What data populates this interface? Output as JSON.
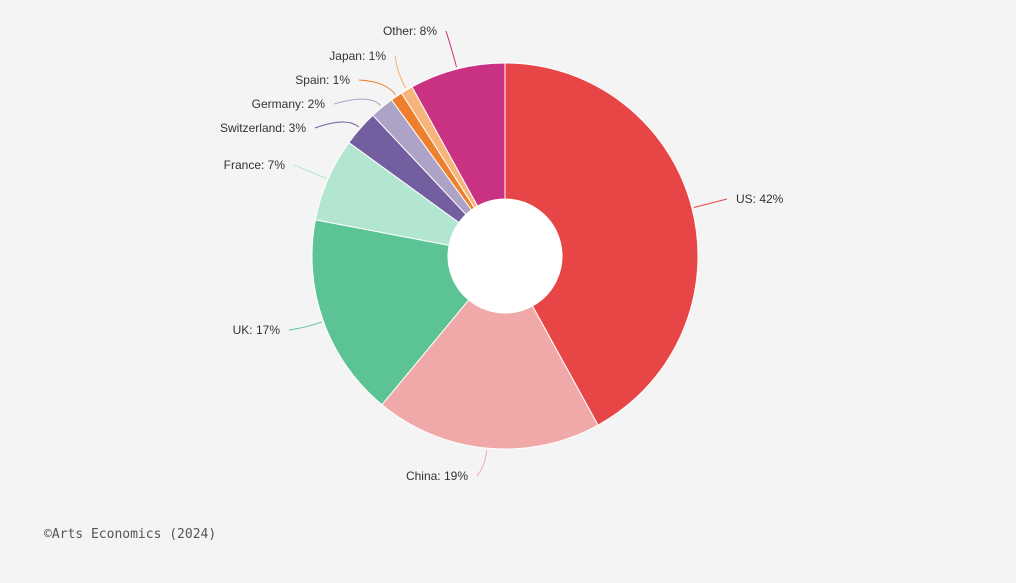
{
  "chart_data": {
    "type": "pie",
    "donut": true,
    "unit": "%",
    "slices": [
      {
        "label": "US: 42%",
        "value": 42,
        "color": "#e84646"
      },
      {
        "label": "China: 19%",
        "value": 19,
        "color": "#f0a8a8"
      },
      {
        "label": "UK: 17%",
        "value": 17,
        "color": "#5cc494"
      },
      {
        "label": "France: 7%",
        "value": 7,
        "color": "#b3e6d0"
      },
      {
        "label": "Switzerland: 3%",
        "value": 3,
        "color": "#735e9f"
      },
      {
        "label": "Germany: 2%",
        "value": 2,
        "color": "#ada3c6"
      },
      {
        "label": "Spain: 1%",
        "value": 1,
        "color": "#ee7f2c"
      },
      {
        "label": "Japan: 1%",
        "value": 1,
        "color": "#f6b57a"
      },
      {
        "label": "Other: 8%",
        "value": 8,
        "color": "#c93282"
      }
    ],
    "start": "12 o'clock",
    "direction": "clockwise"
  },
  "source": "©Arts Economics (2024)"
}
